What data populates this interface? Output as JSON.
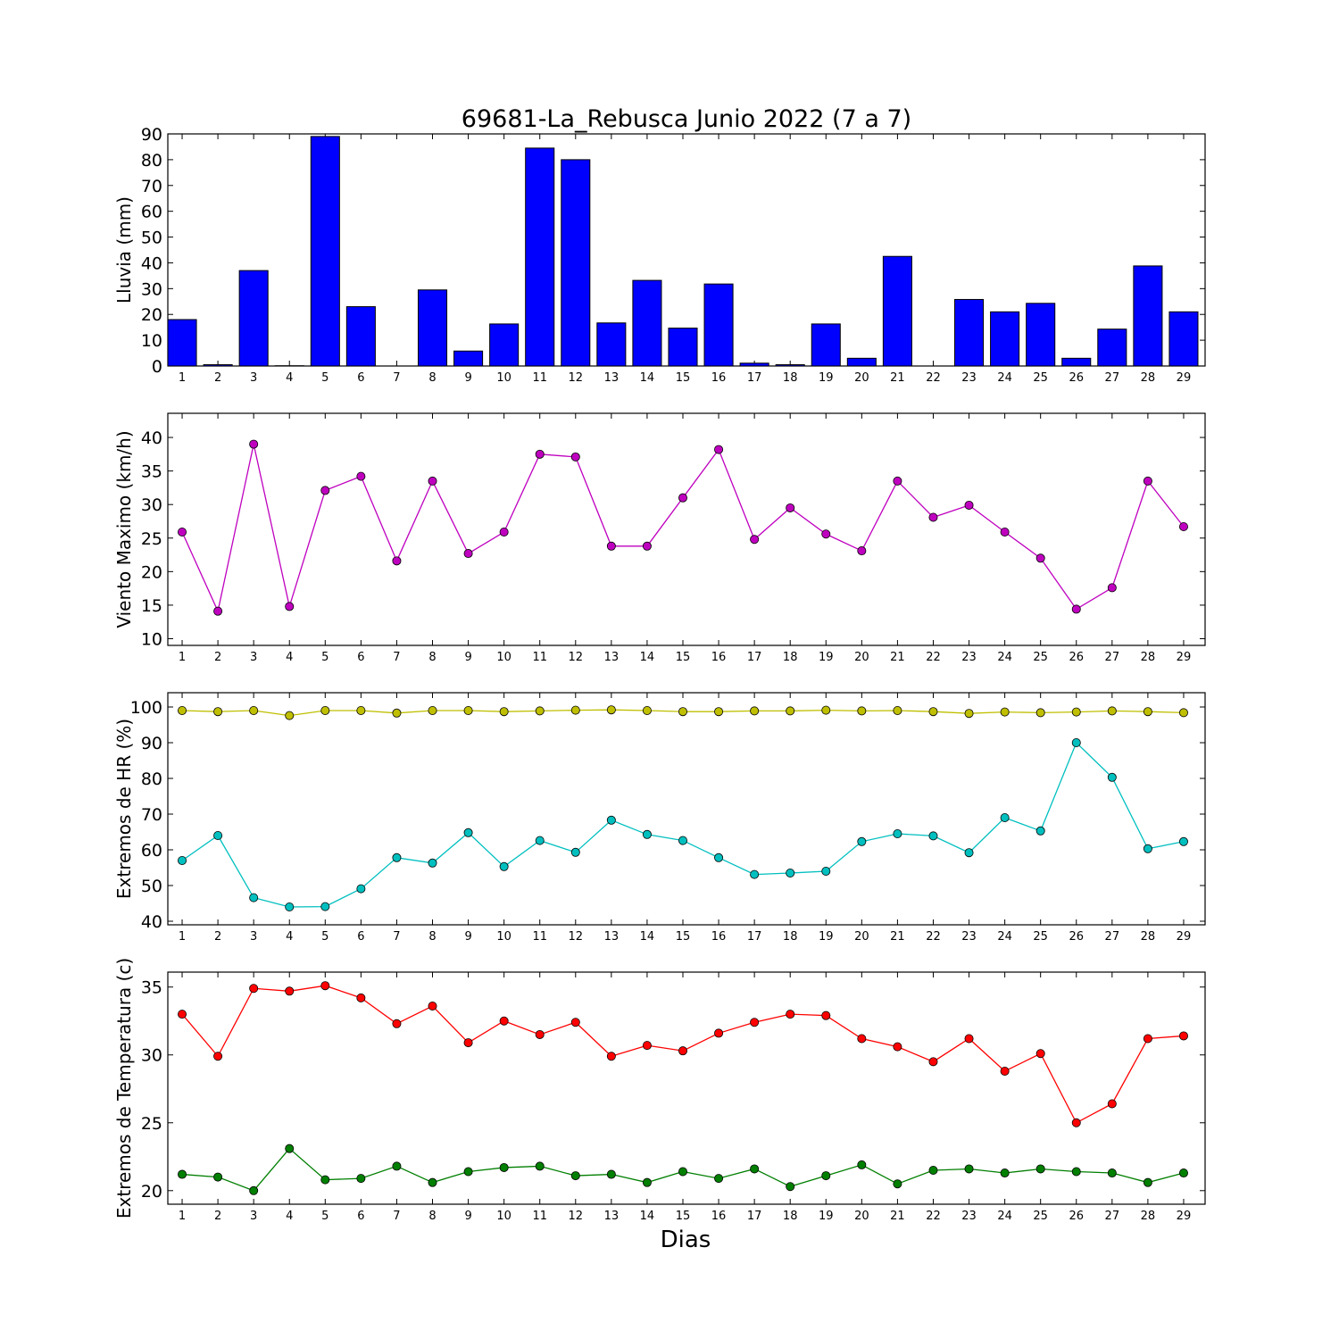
{
  "title": "69681-La_Rebusca Junio 2022  (7 a 7)",
  "xlabel": "Dias",
  "chart_data": [
    {
      "type": "bar",
      "ylabel": "Lluvia (mm)",
      "ylim": [
        0,
        90
      ],
      "yticks": [
        0,
        10,
        20,
        30,
        40,
        50,
        60,
        70,
        80,
        90
      ],
      "categories": [
        1,
        2,
        3,
        4,
        5,
        6,
        7,
        8,
        9,
        10,
        11,
        12,
        13,
        14,
        15,
        16,
        17,
        18,
        19,
        20,
        21,
        22,
        23,
        24,
        25,
        26,
        27,
        28,
        29
      ],
      "series": [
        {
          "color": "#0000ff",
          "values": [
            18.0,
            0.5,
            37.0,
            0.1,
            89.0,
            23.0,
            0.0,
            29.5,
            5.8,
            16.3,
            84.5,
            80.0,
            16.7,
            33.2,
            14.7,
            31.8,
            1.1,
            0.5,
            16.3,
            3.0,
            42.5,
            0.0,
            25.8,
            21.0,
            24.3,
            3.0,
            14.3,
            38.8,
            21.0
          ]
        }
      ]
    },
    {
      "type": "line",
      "ylabel": "Viento Maximo (km/h)",
      "ylim": [
        9,
        43.6
      ],
      "yticks": [
        10,
        15,
        20,
        25,
        30,
        35,
        40
      ],
      "x": [
        1,
        2,
        3,
        4,
        5,
        6,
        7,
        8,
        9,
        10,
        11,
        12,
        13,
        14,
        15,
        16,
        17,
        18,
        19,
        20,
        21,
        22,
        23,
        24,
        25,
        26,
        27,
        28,
        29
      ],
      "series": [
        {
          "color": "#bf00bf",
          "values": [
            25.9,
            14.1,
            39.0,
            14.8,
            32.1,
            34.2,
            21.6,
            33.5,
            22.7,
            25.9,
            37.5,
            37.1,
            23.8,
            23.8,
            31.0,
            38.2,
            24.8,
            29.5,
            25.6,
            23.1,
            33.5,
            28.1,
            29.9,
            25.9,
            22.0,
            14.4,
            17.6,
            33.5,
            26.7
          ]
        }
      ]
    },
    {
      "type": "line",
      "ylabel": "Extremos de HR (%)",
      "ylim": [
        39,
        104
      ],
      "yticks": [
        40,
        50,
        60,
        70,
        80,
        90,
        100
      ],
      "x": [
        1,
        2,
        3,
        4,
        5,
        6,
        7,
        8,
        9,
        10,
        11,
        12,
        13,
        14,
        15,
        16,
        17,
        18,
        19,
        20,
        21,
        22,
        23,
        24,
        25,
        26,
        27,
        28,
        29
      ],
      "series": [
        {
          "color": "#bfbf00",
          "values": [
            99.0,
            98.7,
            99.0,
            97.6,
            99.0,
            99.0,
            98.3,
            99.0,
            99.0,
            98.7,
            98.9,
            99.1,
            99.2,
            99.0,
            98.7,
            98.7,
            98.9,
            98.9,
            99.1,
            98.9,
            99.0,
            98.7,
            98.2,
            98.6,
            98.4,
            98.6,
            98.9,
            98.7,
            98.4
          ]
        },
        {
          "color": "#00bfbf",
          "values": [
            57.0,
            64.0,
            46.6,
            44.0,
            44.1,
            49.1,
            57.8,
            56.3,
            64.8,
            55.3,
            62.6,
            59.3,
            68.3,
            64.3,
            62.6,
            57.8,
            53.1,
            53.5,
            54.0,
            62.3,
            64.5,
            63.9,
            59.2,
            69.0,
            65.3,
            90.0,
            80.3,
            60.3,
            62.3
          ]
        }
      ]
    },
    {
      "type": "line",
      "ylabel": "Extremos de Temperatura (c)",
      "ylim": [
        19,
        36.1
      ],
      "yticks": [
        20,
        25,
        30,
        35
      ],
      "x": [
        1,
        2,
        3,
        4,
        5,
        6,
        7,
        8,
        9,
        10,
        11,
        12,
        13,
        14,
        15,
        16,
        17,
        18,
        19,
        20,
        21,
        22,
        23,
        24,
        25,
        26,
        27,
        28,
        29
      ],
      "series": [
        {
          "color": "#ff0000",
          "values": [
            33.0,
            29.9,
            34.9,
            34.7,
            35.1,
            34.2,
            32.3,
            33.6,
            30.9,
            32.5,
            31.5,
            32.4,
            29.9,
            30.7,
            30.3,
            31.6,
            32.4,
            33.0,
            32.9,
            31.2,
            30.6,
            29.5,
            31.2,
            28.8,
            30.1,
            25.0,
            26.4,
            31.2,
            31.4
          ]
        },
        {
          "color": "#007f00",
          "values": [
            21.2,
            21.0,
            20.0,
            23.1,
            20.8,
            20.9,
            21.8,
            20.6,
            21.4,
            21.7,
            21.8,
            21.1,
            21.2,
            20.6,
            21.4,
            20.9,
            21.6,
            20.3,
            21.1,
            21.9,
            20.5,
            21.5,
            21.6,
            21.3,
            21.6,
            21.4,
            21.3,
            20.6,
            21.3
          ]
        }
      ]
    }
  ]
}
